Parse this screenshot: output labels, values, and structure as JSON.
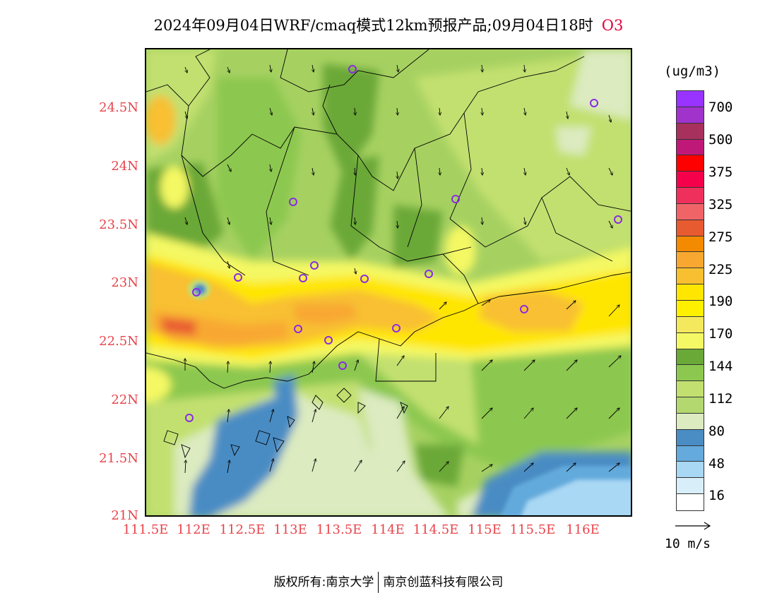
{
  "header": {
    "title": "2024年09月04日WRF/cmaq模式12km预报产品;09月04日18时",
    "pollutant": "O3"
  },
  "map": {
    "lat_labels": [
      "24.5N",
      "24N",
      "23.5N",
      "23N",
      "22.5N",
      "22N",
      "21.5N",
      "21N"
    ],
    "lon_labels": [
      "111.5E",
      "112E",
      "112.5E",
      "113E",
      "113.5E",
      "114E",
      "114.5E",
      "115E",
      "115.5E",
      "116E"
    ]
  },
  "colorbar": {
    "unit": "(ug/m3)",
    "colors": [
      "#9933ff",
      "#a033cc",
      "#a8305c",
      "#c01878",
      "#ff0000",
      "#f5004a",
      "#f0305c",
      "#f06468",
      "#e85a30",
      "#f48a00",
      "#f8a830",
      "#f8c030",
      "#ffe600",
      "#fff000",
      "#f4e85c",
      "#f4f864",
      "#6aa838",
      "#8cc850",
      "#c2e070",
      "#b4d870",
      "#dcebc0",
      "#4a8cc4",
      "#64aadc",
      "#a8d8f4",
      "#d8eef8",
      "#ffffff"
    ],
    "tick_labels": [
      "700",
      "500",
      "375",
      "325",
      "275",
      "225",
      "190",
      "170",
      "144",
      "112",
      "80",
      "48",
      "16"
    ]
  },
  "wind": {
    "ref_label": "10 m/s"
  },
  "footer": {
    "left": "版权所有:南京大学",
    "right": "南京创蓝科技有限公司"
  }
}
